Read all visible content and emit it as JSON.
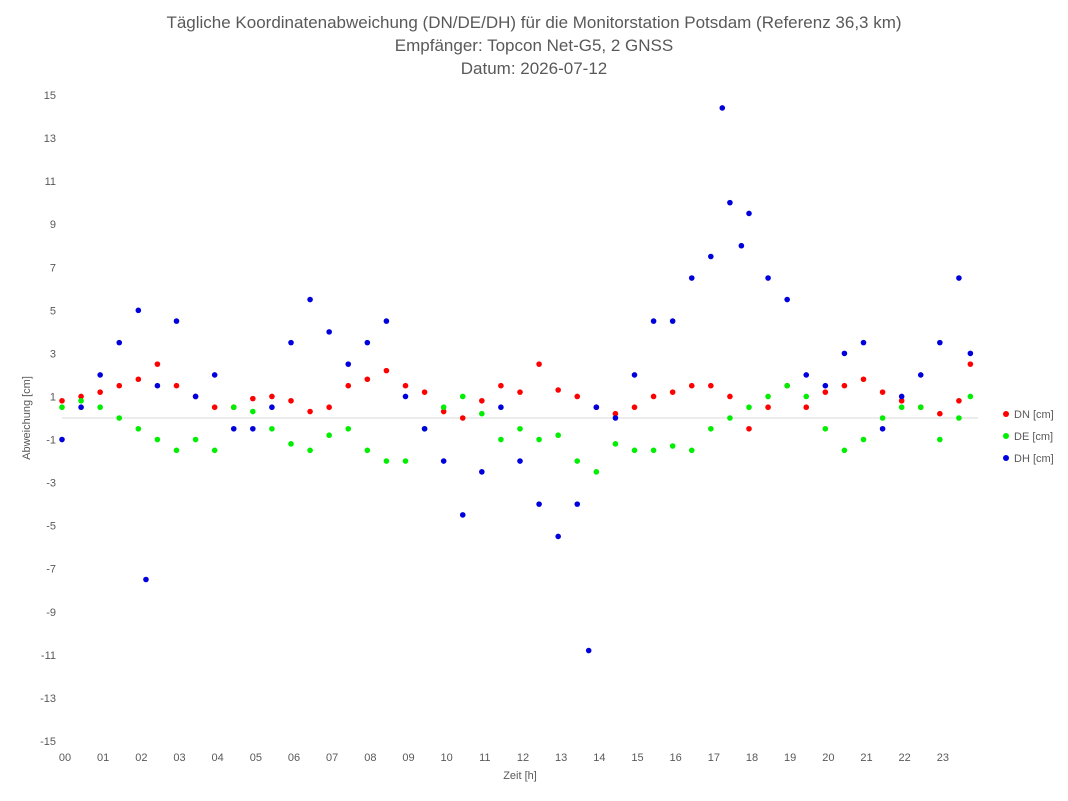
{
  "chart_data": {
    "type": "scatter",
    "title": "Tägliche Koordinatenabweichung (DN/DE/DH) für die Monitorstation Potsdam (Referenz 36,3 km)",
    "subtitle1": "Empfänger: Topcon Net-G5, 2 GNSS",
    "subtitle2": "Datum: 2026-07-12",
    "xlabel": "Zeit [h]",
    "ylabel": "Abweichung [cm]",
    "xlim": [
      0,
      24
    ],
    "ylim": [
      -15,
      15
    ],
    "x_tick_labels": [
      "00",
      "01",
      "02",
      "03",
      "04",
      "05",
      "06",
      "07",
      "08",
      "09",
      "10",
      "11",
      "12",
      "13",
      "14",
      "15",
      "16",
      "17",
      "18",
      "19",
      "20",
      "21",
      "22",
      "23"
    ],
    "y_tick_labels": [
      "15",
      "13",
      "11",
      "9",
      "7",
      "5",
      "3",
      "1",
      "-1",
      "-3",
      "-5",
      "-7",
      "-9",
      "-11",
      "-13",
      "-15"
    ],
    "y_ticks": [
      15,
      13,
      11,
      9,
      7,
      5,
      3,
      1,
      -1,
      -3,
      -5,
      -7,
      -9,
      -11,
      -13,
      -15
    ],
    "legend_position": "right",
    "grid": "zero-line only",
    "series": [
      {
        "name": "DN [cm]",
        "color": "#ff0000",
        "x": [
          0.0,
          0.5,
          1.0,
          1.5,
          2.0,
          2.5,
          3.0,
          3.5,
          4.0,
          4.5,
          5.0,
          5.5,
          6.0,
          6.5,
          7.0,
          7.5,
          8.0,
          8.5,
          9.0,
          9.5,
          10.0,
          10.5,
          11.0,
          11.5,
          12.0,
          12.5,
          13.0,
          13.5,
          14.0,
          14.5,
          15.0,
          15.5,
          16.0,
          16.5,
          17.0,
          17.5,
          18.0,
          18.5,
          19.0,
          19.5,
          20.0,
          20.5,
          21.0,
          21.5,
          22.0,
          22.5,
          23.0,
          23.5,
          23.8
        ],
        "y": [
          0.8,
          1.0,
          1.2,
          1.5,
          1.8,
          2.5,
          1.5,
          1.0,
          0.5,
          0.5,
          0.9,
          1.0,
          0.8,
          0.3,
          0.5,
          1.5,
          1.8,
          2.2,
          1.5,
          1.2,
          0.3,
          0.0,
          0.8,
          1.5,
          1.2,
          2.5,
          1.3,
          1.0,
          0.5,
          0.2,
          0.5,
          1.0,
          1.2,
          1.5,
          1.5,
          1.0,
          -0.5,
          0.5,
          1.5,
          0.5,
          1.2,
          1.5,
          1.8,
          1.2,
          0.8,
          0.5,
          0.2,
          0.8,
          2.5
        ]
      },
      {
        "name": "DE [cm]",
        "color": "#00ee00",
        "x": [
          0.0,
          0.5,
          1.0,
          1.5,
          2.0,
          2.5,
          3.0,
          3.5,
          4.0,
          4.5,
          5.0,
          5.5,
          6.0,
          6.5,
          7.0,
          7.5,
          8.0,
          8.5,
          9.0,
          9.5,
          10.0,
          10.5,
          11.0,
          11.5,
          12.0,
          12.5,
          13.0,
          13.5,
          14.0,
          14.5,
          15.0,
          15.5,
          16.0,
          16.5,
          17.0,
          17.5,
          18.0,
          18.5,
          19.0,
          19.5,
          20.0,
          20.5,
          21.0,
          21.5,
          22.0,
          22.5,
          23.0,
          23.5,
          23.8
        ],
        "y": [
          0.5,
          0.8,
          0.5,
          0.0,
          -0.5,
          -1.0,
          -1.5,
          -1.0,
          -1.5,
          0.5,
          0.3,
          -0.5,
          -1.2,
          -1.5,
          -0.8,
          -0.5,
          -1.5,
          -2.0,
          -2.0,
          -0.5,
          0.5,
          1.0,
          0.2,
          -1.0,
          -0.5,
          -1.0,
          -0.8,
          -2.0,
          -2.5,
          -1.2,
          -1.5,
          -1.5,
          -1.3,
          -1.5,
          -0.5,
          0.0,
          0.5,
          1.0,
          1.5,
          1.0,
          -0.5,
          -1.5,
          -1.0,
          0.0,
          0.5,
          0.5,
          -1.0,
          0.0,
          1.0
        ]
      },
      {
        "name": "DH [cm]",
        "color": "#0000dd",
        "x": [
          0.0,
          0.5,
          1.0,
          1.5,
          2.0,
          2.2,
          2.5,
          3.0,
          3.5,
          4.0,
          4.5,
          5.0,
          5.5,
          6.0,
          6.5,
          7.0,
          7.5,
          8.0,
          8.5,
          9.0,
          9.5,
          10.0,
          10.5,
          11.0,
          11.5,
          12.0,
          12.5,
          13.0,
          13.5,
          13.8,
          14.0,
          14.5,
          15.0,
          15.5,
          16.0,
          16.5,
          17.0,
          17.3,
          17.5,
          17.8,
          18.0,
          18.5,
          19.0,
          19.5,
          20.0,
          20.5,
          21.0,
          21.5,
          22.0,
          22.5,
          23.0,
          23.5,
          23.8
        ],
        "y": [
          -1.0,
          0.5,
          2.0,
          3.5,
          5.0,
          -7.5,
          1.5,
          4.5,
          1.0,
          2.0,
          -0.5,
          -0.5,
          0.5,
          3.5,
          5.5,
          4.0,
          2.5,
          3.5,
          4.5,
          1.0,
          -0.5,
          -2.0,
          -4.5,
          -2.5,
          0.5,
          -2.0,
          -4.0,
          -5.5,
          -4.0,
          -10.8,
          0.5,
          0.0,
          2.0,
          4.5,
          4.5,
          6.5,
          7.5,
          14.4,
          10.0,
          8.0,
          9.5,
          6.5,
          5.5,
          2.0,
          1.5,
          3.0,
          3.5,
          -0.5,
          1.0,
          2.0,
          3.5,
          6.5,
          3.0
        ]
      }
    ]
  }
}
